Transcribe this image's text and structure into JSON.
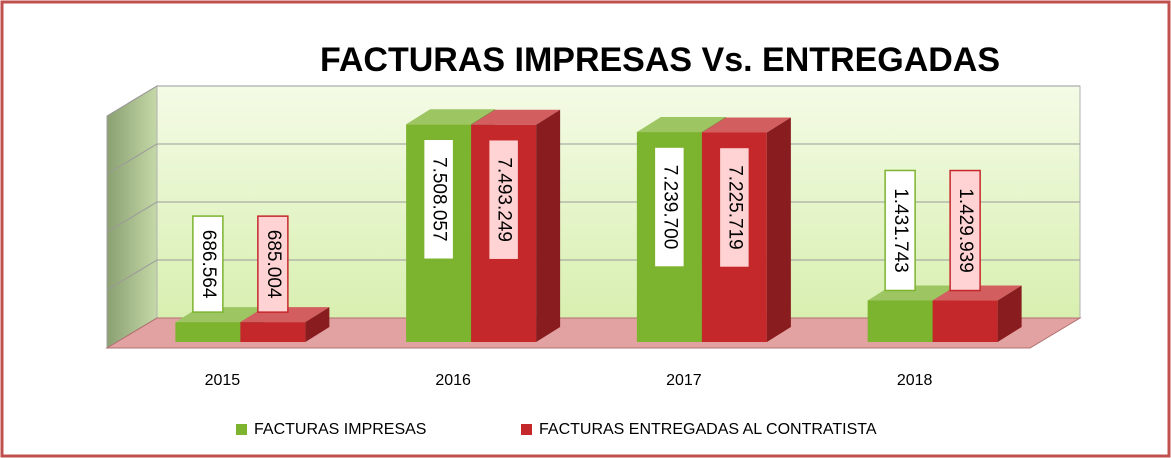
{
  "chart_data": {
    "type": "bar3d",
    "title": "FACTURAS IMPRESAS Vs. ENTREGADAS",
    "categories": [
      "2015",
      "2016",
      "2017",
      "2018"
    ],
    "series": [
      {
        "name": "FACTURAS IMPRESAS",
        "color": "#7cb32f",
        "values": [
          686564,
          7508057,
          7239700,
          1431743
        ],
        "value_labels": [
          "686.564",
          "7.508.057",
          "7.239.700",
          "1.431.743"
        ]
      },
      {
        "name": "FACTURAS ENTREGADAS AL CONTRATISTA",
        "color": "#c4282b",
        "values": [
          685004,
          7493249,
          7225719,
          1429939
        ],
        "value_labels": [
          "685.004",
          "7.493.249",
          "7.225.719",
          "1.429.939"
        ]
      }
    ],
    "ylim": [
      0,
      8000000
    ],
    "yticks": [
      0,
      2000000,
      4000000,
      6000000,
      8000000
    ],
    "grid": true,
    "legend": "bottom"
  }
}
